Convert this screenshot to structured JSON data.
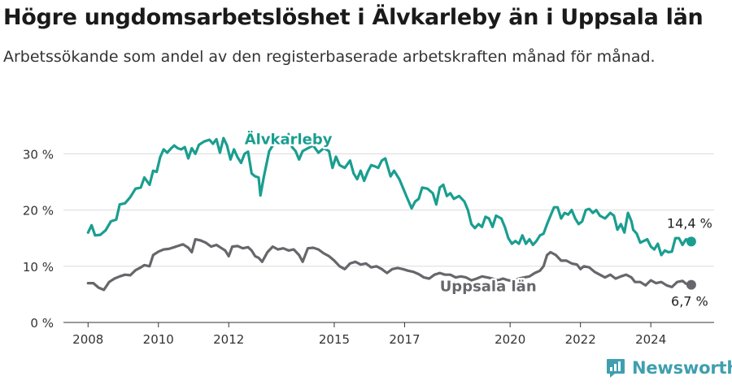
{
  "header": {
    "title": "Högre ungdomsarbetslöshet i Älvkarleby än i Uppsala län",
    "subtitle": "Arbetssökande som andel av den registerbaserade arbetskraften månad för månad."
  },
  "brand": {
    "name": "Newsworthy",
    "icon": "newsworthy-logo-icon"
  },
  "chart_data": {
    "type": "line",
    "ylim": [
      0,
      37
    ],
    "xlim": [
      2007.3,
      2025.8
    ],
    "y_ticks": [
      {
        "v": 0,
        "label": "0 %"
      },
      {
        "v": 10,
        "label": "10 %"
      },
      {
        "v": 20,
        "label": "20 %"
      },
      {
        "v": 30,
        "label": "30 %"
      }
    ],
    "x_ticks": [
      {
        "v": 2008,
        "label": "2008"
      },
      {
        "v": 2010,
        "label": "2010"
      },
      {
        "v": 2012,
        "label": "2012"
      },
      {
        "v": 2015,
        "label": "2015"
      },
      {
        "v": 2017,
        "label": "2017"
      },
      {
        "v": 2020,
        "label": "2020"
      },
      {
        "v": 2022,
        "label": "2022"
      },
      {
        "v": 2024,
        "label": "2024"
      }
    ],
    "grid": true,
    "series": [
      {
        "name": "Älvkarleby",
        "color": "#1a9e90",
        "end_label": "14,4 %",
        "points": [
          [
            2008.0,
            16.0
          ],
          [
            2008.1,
            17.3
          ],
          [
            2008.2,
            15.5
          ],
          [
            2008.35,
            15.6
          ],
          [
            2008.5,
            16.4
          ],
          [
            2008.65,
            18.0
          ],
          [
            2008.8,
            18.3
          ],
          [
            2008.9,
            21.0
          ],
          [
            2009.05,
            21.2
          ],
          [
            2009.2,
            22.3
          ],
          [
            2009.35,
            23.8
          ],
          [
            2009.5,
            24.0
          ],
          [
            2009.6,
            25.8
          ],
          [
            2009.75,
            24.5
          ],
          [
            2009.85,
            27.0
          ],
          [
            2009.95,
            26.8
          ],
          [
            2010.05,
            29.4
          ],
          [
            2010.15,
            30.8
          ],
          [
            2010.25,
            30.2
          ],
          [
            2010.35,
            30.9
          ],
          [
            2010.45,
            31.5
          ],
          [
            2010.55,
            31.0
          ],
          [
            2010.65,
            30.8
          ],
          [
            2010.75,
            31.2
          ],
          [
            2010.85,
            29.2
          ],
          [
            2010.95,
            31.0
          ],
          [
            2011.05,
            30.0
          ],
          [
            2011.15,
            31.6
          ],
          [
            2011.3,
            32.2
          ],
          [
            2011.45,
            32.5
          ],
          [
            2011.55,
            31.8
          ],
          [
            2011.65,
            32.6
          ],
          [
            2011.75,
            30.2
          ],
          [
            2011.85,
            32.8
          ],
          [
            2011.95,
            31.5
          ],
          [
            2012.05,
            29.0
          ],
          [
            2012.15,
            30.8
          ],
          [
            2012.25,
            29.4
          ],
          [
            2012.35,
            28.4
          ],
          [
            2012.45,
            30.0
          ],
          [
            2012.55,
            30.4
          ],
          [
            2012.65,
            26.5
          ],
          [
            2012.75,
            26.0
          ],
          [
            2012.85,
            25.8
          ],
          [
            2012.9,
            22.6
          ],
          [
            2013.0,
            26.0
          ],
          [
            2013.15,
            30.5
          ],
          [
            2013.3,
            32.0
          ],
          [
            2013.45,
            33.0
          ],
          [
            2013.6,
            32.5
          ],
          [
            2013.7,
            33.5
          ],
          [
            2013.8,
            31.2
          ],
          [
            2013.9,
            30.5
          ],
          [
            2014.0,
            29.0
          ],
          [
            2014.1,
            30.5
          ],
          [
            2014.25,
            31.0
          ],
          [
            2014.4,
            31.5
          ],
          [
            2014.55,
            30.2
          ],
          [
            2014.7,
            31.0
          ],
          [
            2014.85,
            30.5
          ],
          [
            2014.95,
            27.5
          ],
          [
            2015.05,
            29.5
          ],
          [
            2015.15,
            28.0
          ],
          [
            2015.3,
            27.5
          ],
          [
            2015.45,
            28.8
          ],
          [
            2015.55,
            26.5
          ],
          [
            2015.65,
            25.5
          ],
          [
            2015.75,
            27.0
          ],
          [
            2015.85,
            25.2
          ],
          [
            2015.95,
            26.8
          ],
          [
            2016.05,
            28.0
          ],
          [
            2016.15,
            27.8
          ],
          [
            2016.25,
            27.5
          ],
          [
            2016.35,
            28.8
          ],
          [
            2016.45,
            29.2
          ],
          [
            2016.6,
            26.0
          ],
          [
            2016.7,
            27.0
          ],
          [
            2016.85,
            25.5
          ],
          [
            2016.95,
            24.0
          ],
          [
            2017.05,
            22.5
          ],
          [
            2017.2,
            20.3
          ],
          [
            2017.3,
            21.5
          ],
          [
            2017.4,
            22.0
          ],
          [
            2017.5,
            24.0
          ],
          [
            2017.65,
            23.8
          ],
          [
            2017.8,
            23.0
          ],
          [
            2017.9,
            21.0
          ],
          [
            2018.0,
            24.0
          ],
          [
            2018.1,
            24.5
          ],
          [
            2018.2,
            22.5
          ],
          [
            2018.3,
            23.0
          ],
          [
            2018.4,
            22.0
          ],
          [
            2018.55,
            22.5
          ],
          [
            2018.7,
            21.5
          ],
          [
            2018.8,
            20.0
          ],
          [
            2018.9,
            17.5
          ],
          [
            2019.0,
            16.8
          ],
          [
            2019.1,
            17.5
          ],
          [
            2019.2,
            17.0
          ],
          [
            2019.3,
            18.8
          ],
          [
            2019.4,
            18.5
          ],
          [
            2019.5,
            17.0
          ],
          [
            2019.6,
            19.0
          ],
          [
            2019.75,
            18.5
          ],
          [
            2019.85,
            17.0
          ],
          [
            2019.95,
            15.0
          ],
          [
            2020.05,
            14.0
          ],
          [
            2020.15,
            14.5
          ],
          [
            2020.25,
            14.0
          ],
          [
            2020.35,
            15.5
          ],
          [
            2020.45,
            14.0
          ],
          [
            2020.55,
            14.8
          ],
          [
            2020.65,
            13.8
          ],
          [
            2020.75,
            14.5
          ],
          [
            2020.85,
            15.5
          ],
          [
            2020.95,
            15.8
          ],
          [
            2021.05,
            17.5
          ],
          [
            2021.15,
            19.0
          ],
          [
            2021.25,
            20.5
          ],
          [
            2021.35,
            20.5
          ],
          [
            2021.45,
            18.5
          ],
          [
            2021.55,
            19.5
          ],
          [
            2021.65,
            19.2
          ],
          [
            2021.75,
            20.0
          ],
          [
            2021.85,
            18.5
          ],
          [
            2021.95,
            17.5
          ],
          [
            2022.05,
            18.0
          ],
          [
            2022.15,
            20.0
          ],
          [
            2022.25,
            20.2
          ],
          [
            2022.35,
            19.5
          ],
          [
            2022.45,
            20.0
          ],
          [
            2022.55,
            19.0
          ],
          [
            2022.7,
            18.5
          ],
          [
            2022.85,
            19.5
          ],
          [
            2022.95,
            19.0
          ],
          [
            2023.05,
            16.5
          ],
          [
            2023.15,
            17.5
          ],
          [
            2023.25,
            16.0
          ],
          [
            2023.35,
            19.5
          ],
          [
            2023.45,
            18.0
          ],
          [
            2023.5,
            16.5
          ],
          [
            2023.6,
            15.8
          ],
          [
            2023.7,
            14.2
          ],
          [
            2023.8,
            14.5
          ],
          [
            2023.9,
            14.8
          ],
          [
            2024.0,
            13.5
          ],
          [
            2024.1,
            13.0
          ],
          [
            2024.2,
            14.0
          ],
          [
            2024.3,
            12.0
          ],
          [
            2024.4,
            12.8
          ],
          [
            2024.5,
            12.5
          ],
          [
            2024.6,
            12.6
          ],
          [
            2024.7,
            15.0
          ],
          [
            2024.8,
            15.0
          ],
          [
            2024.9,
            13.8
          ],
          [
            2025.0,
            14.8
          ],
          [
            2025.15,
            14.4
          ]
        ]
      },
      {
        "name": "Uppsala län",
        "color": "#67666b",
        "end_label": "6,7 %",
        "points": [
          [
            2008.0,
            7.0
          ],
          [
            2008.15,
            7.0
          ],
          [
            2008.3,
            6.2
          ],
          [
            2008.45,
            5.8
          ],
          [
            2008.6,
            7.2
          ],
          [
            2008.75,
            7.8
          ],
          [
            2008.9,
            8.2
          ],
          [
            2009.05,
            8.5
          ],
          [
            2009.2,
            8.4
          ],
          [
            2009.35,
            9.3
          ],
          [
            2009.5,
            9.8
          ],
          [
            2009.6,
            10.2
          ],
          [
            2009.75,
            10.0
          ],
          [
            2009.85,
            12.0
          ],
          [
            2010.0,
            12.6
          ],
          [
            2010.15,
            13.0
          ],
          [
            2010.3,
            13.1
          ],
          [
            2010.45,
            13.4
          ],
          [
            2010.55,
            13.6
          ],
          [
            2010.7,
            13.9
          ],
          [
            2010.85,
            13.3
          ],
          [
            2010.95,
            12.5
          ],
          [
            2011.05,
            14.8
          ],
          [
            2011.2,
            14.6
          ],
          [
            2011.35,
            14.2
          ],
          [
            2011.5,
            13.5
          ],
          [
            2011.65,
            13.8
          ],
          [
            2011.8,
            13.2
          ],
          [
            2011.9,
            12.8
          ],
          [
            2012.0,
            11.8
          ],
          [
            2012.1,
            13.5
          ],
          [
            2012.25,
            13.6
          ],
          [
            2012.4,
            13.2
          ],
          [
            2012.55,
            13.4
          ],
          [
            2012.65,
            12.8
          ],
          [
            2012.75,
            11.8
          ],
          [
            2012.85,
            11.5
          ],
          [
            2012.95,
            10.8
          ],
          [
            2013.1,
            12.5
          ],
          [
            2013.25,
            13.5
          ],
          [
            2013.4,
            13.0
          ],
          [
            2013.55,
            13.2
          ],
          [
            2013.7,
            12.8
          ],
          [
            2013.85,
            13.0
          ],
          [
            2014.0,
            12.0
          ],
          [
            2014.1,
            10.8
          ],
          [
            2014.25,
            13.2
          ],
          [
            2014.4,
            13.3
          ],
          [
            2014.55,
            13.0
          ],
          [
            2014.7,
            12.3
          ],
          [
            2014.85,
            11.8
          ],
          [
            2015.0,
            11.0
          ],
          [
            2015.15,
            10.0
          ],
          [
            2015.3,
            9.5
          ],
          [
            2015.45,
            10.5
          ],
          [
            2015.6,
            10.8
          ],
          [
            2015.75,
            10.3
          ],
          [
            2015.9,
            10.5
          ],
          [
            2016.05,
            9.8
          ],
          [
            2016.2,
            10.0
          ],
          [
            2016.35,
            9.5
          ],
          [
            2016.5,
            8.8
          ],
          [
            2016.65,
            9.5
          ],
          [
            2016.8,
            9.7
          ],
          [
            2016.95,
            9.5
          ],
          [
            2017.1,
            9.2
          ],
          [
            2017.25,
            9.0
          ],
          [
            2017.4,
            8.6
          ],
          [
            2017.55,
            8.0
          ],
          [
            2017.7,
            7.8
          ],
          [
            2017.85,
            8.5
          ],
          [
            2018.0,
            8.8
          ],
          [
            2018.15,
            8.5
          ],
          [
            2018.3,
            8.5
          ],
          [
            2018.45,
            8.0
          ],
          [
            2018.6,
            8.2
          ],
          [
            2018.75,
            8.0
          ],
          [
            2018.9,
            7.5
          ],
          [
            2019.05,
            7.8
          ],
          [
            2019.2,
            8.2
          ],
          [
            2019.35,
            8.0
          ],
          [
            2019.5,
            7.8
          ],
          [
            2019.65,
            7.5
          ],
          [
            2019.8,
            7.8
          ],
          [
            2019.95,
            7.5
          ],
          [
            2020.1,
            7.4
          ],
          [
            2020.25,
            7.8
          ],
          [
            2020.4,
            8.0
          ],
          [
            2020.55,
            8.2
          ],
          [
            2020.7,
            8.8
          ],
          [
            2020.85,
            9.2
          ],
          [
            2020.95,
            10.0
          ],
          [
            2021.05,
            12.0
          ],
          [
            2021.15,
            12.5
          ],
          [
            2021.3,
            12.0
          ],
          [
            2021.45,
            11.0
          ],
          [
            2021.6,
            11.0
          ],
          [
            2021.75,
            10.5
          ],
          [
            2021.9,
            10.3
          ],
          [
            2022.0,
            9.5
          ],
          [
            2022.1,
            10.0
          ],
          [
            2022.25,
            9.8
          ],
          [
            2022.4,
            9.0
          ],
          [
            2022.55,
            8.5
          ],
          [
            2022.7,
            8.0
          ],
          [
            2022.85,
            8.5
          ],
          [
            2023.0,
            7.8
          ],
          [
            2023.15,
            8.2
          ],
          [
            2023.3,
            8.5
          ],
          [
            2023.45,
            8.0
          ],
          [
            2023.55,
            7.2
          ],
          [
            2023.7,
            7.2
          ],
          [
            2023.85,
            6.6
          ],
          [
            2024.0,
            7.5
          ],
          [
            2024.15,
            7.0
          ],
          [
            2024.3,
            7.2
          ],
          [
            2024.45,
            6.6
          ],
          [
            2024.6,
            6.3
          ],
          [
            2024.75,
            7.2
          ],
          [
            2024.9,
            7.4
          ],
          [
            2025.0,
            6.9
          ],
          [
            2025.15,
            6.7
          ]
        ]
      }
    ]
  }
}
